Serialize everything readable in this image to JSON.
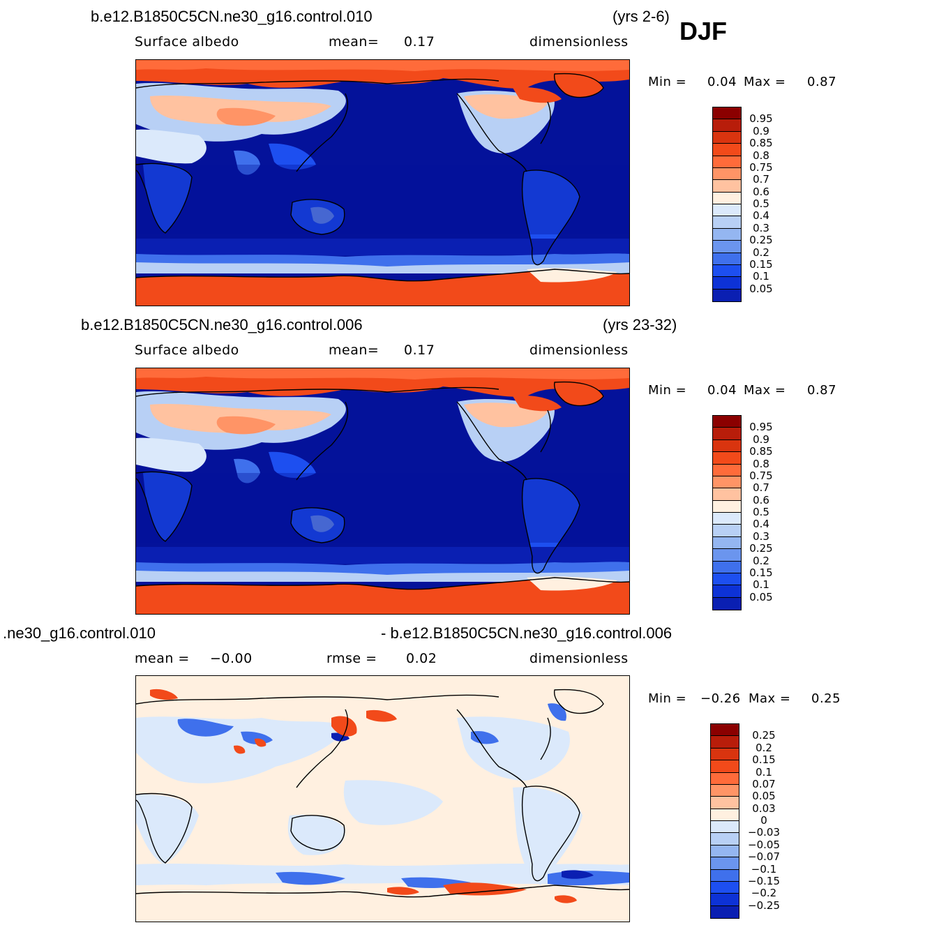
{
  "season": "DJF",
  "palette_abs": [
    "#8b0000",
    "#b81d0a",
    "#d9340f",
    "#f24a1a",
    "#ff6b3a",
    "#ff9466",
    "#ffc2a0",
    "#fff0e0",
    "#dbe9fb",
    "#b8d0f5",
    "#94b6f1",
    "#6b95ee",
    "#3f70ec",
    "#1d4ff0",
    "#0d32d6",
    "#0a1fb2",
    "#04129a"
  ],
  "palette_diff": [
    "#8b0000",
    "#b81d0a",
    "#d9340f",
    "#f24a1a",
    "#ff6b3a",
    "#ff9466",
    "#ffc2a0",
    "#fff0e0",
    "#dbe9fb",
    "#b8d0f5",
    "#94b6f1",
    "#6b95ee",
    "#3f70ec",
    "#1d4ff0",
    "#0d32d6",
    "#0a1fb2",
    "#04129a"
  ],
  "panels": [
    {
      "title": "b.e12.B1850C5CN.ne30_g16.control.010",
      "years": "(yrs 2-6)",
      "variable": "Surface albedo",
      "mean_label": "mean=",
      "mean_value": "0.17",
      "units": "dimensionless",
      "min_label": "Min =",
      "min_value": "0.04",
      "max_label": "Max =",
      "max_value": "0.87",
      "levels": [
        "0.95",
        "0.9",
        "0.85",
        "0.8",
        "0.75",
        "0.7",
        "0.6",
        "0.5",
        "0.4",
        "0.3",
        "0.25",
        "0.2",
        "0.15",
        "0.1",
        "0.05"
      ]
    },
    {
      "title": "b.e12.B1850C5CN.ne30_g16.control.006",
      "years": "(yrs 23-32)",
      "variable": "Surface albedo",
      "mean_label": "mean=",
      "mean_value": "0.17",
      "units": "dimensionless",
      "min_label": "Min =",
      "min_value": "0.04",
      "max_label": "Max =",
      "max_value": "0.87",
      "levels": [
        "0.95",
        "0.9",
        "0.85",
        "0.8",
        "0.75",
        "0.7",
        "0.6",
        "0.5",
        "0.4",
        "0.3",
        "0.25",
        "0.2",
        "0.15",
        "0.1",
        "0.05"
      ]
    },
    {
      "title_left": ".ne30_g16.control.010",
      "title_right": "- b.e12.B1850C5CN.ne30_g16.control.006",
      "mean_label": "mean =",
      "mean_value": "−0.00",
      "rmse_label": "rmse =",
      "rmse_value": "0.02",
      "units": "dimensionless",
      "min_label": "Min =",
      "min_value": "−0.26",
      "max_label": "Max =",
      "max_value": "0.25",
      "levels": [
        "0.25",
        "0.2",
        "0.15",
        "0.1",
        "0.07",
        "0.05",
        "0.03",
        "0",
        "−0.03",
        "−0.05",
        "−0.07",
        "−0.1",
        "−0.15",
        "−0.2",
        "−0.25"
      ]
    }
  ]
}
